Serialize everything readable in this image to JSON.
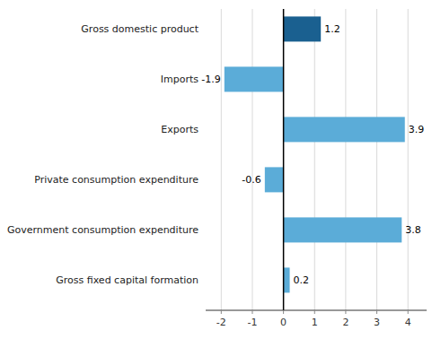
{
  "chart_data": {
    "type": "bar",
    "orientation": "horizontal",
    "categories": [
      "Gross fixed capital formation",
      "Government consumption expenditure",
      "Private consumption expenditure",
      "Exports",
      "Imports",
      "Gross domestic product"
    ],
    "values": [
      0.2,
      3.8,
      -0.6,
      3.9,
      -1.9,
      1.2
    ],
    "colors": [
      "#5bacd8",
      "#5bacd8",
      "#5bacd8",
      "#5bacd8",
      "#5bacd8",
      "#1a6090"
    ],
    "xlim": [
      -2.5,
      4.6
    ],
    "xticks": [
      -2,
      -1,
      0,
      1,
      2,
      3,
      4
    ],
    "grid": true,
    "data_labels": true
  }
}
